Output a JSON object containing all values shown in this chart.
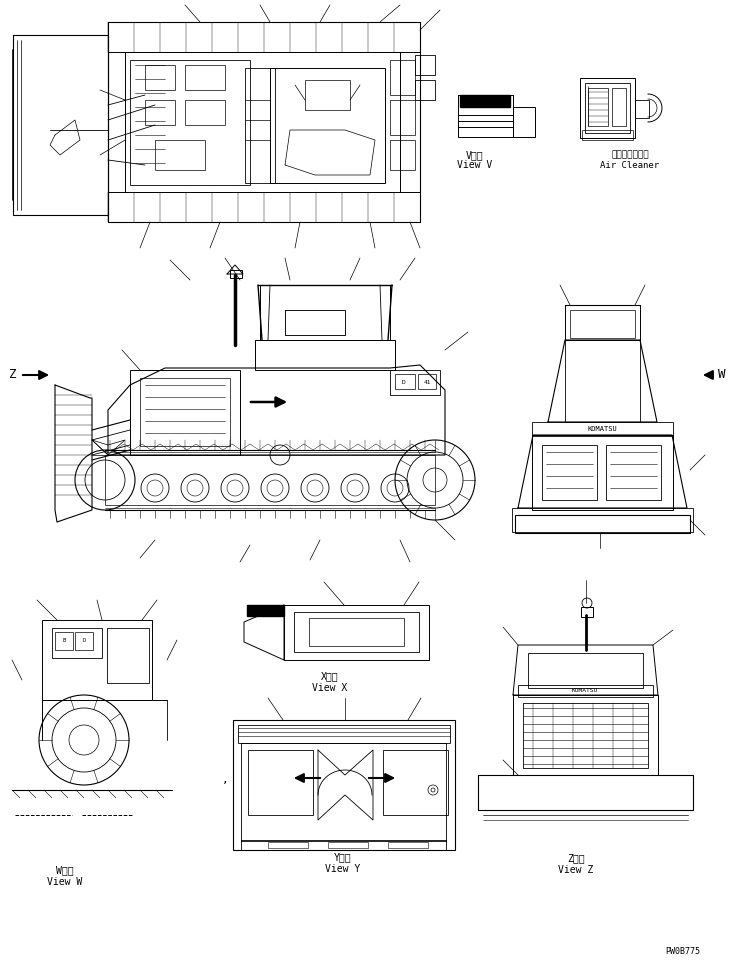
{
  "bg_color": "#ffffff",
  "line_color": "#000000",
  "fig_width": 7.3,
  "fig_height": 9.66,
  "dpi": 100,
  "labels": {
    "view_v_jp": "V　視",
    "view_v_en": "View V",
    "air_cleaner_jp": "エアークリーナ",
    "air_cleaner_en": "Air Cleaner",
    "z_arrow": "Z",
    "w_arrow": "W",
    "view_w_jp": "W　視",
    "view_w_en": "View W",
    "view_x_jp": "X　視",
    "view_x_en": "View X",
    "view_y_jp": "Y　視",
    "view_y_en": "View Y",
    "view_z_jp": "Z　視",
    "view_z_en": "View Z",
    "part_number": "PW0B775"
  },
  "font_size_label": 7,
  "font_size_part": 6
}
